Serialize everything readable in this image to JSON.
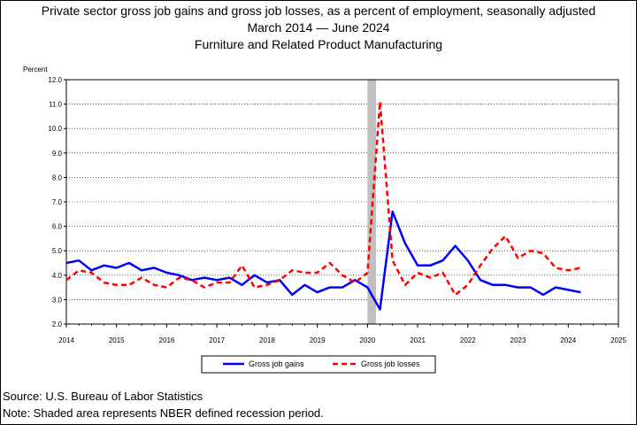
{
  "page": {
    "title_line1": "Private sector gross job gains and gross job losses, as a percent of employment, seasonally adjusted",
    "title_line2": "March 2014 — June 2024",
    "title_line3": "Furniture and Related Product Manufacturing",
    "source": "Source: U.S. Bureau of Labor Statistics",
    "note": "Note: Shaded area represents NBER defined recession period."
  },
  "chart_data": {
    "type": "line",
    "title": "Private sector gross job gains and gross job losses, as a percent of employment, seasonally adjusted",
    "ylabel": "Percent",
    "xlabel": "",
    "ylim": [
      2.0,
      12.0
    ],
    "xlim": [
      2014.0,
      2025.0
    ],
    "y_ticks": [
      "2.0",
      "3.0",
      "4.0",
      "5.0",
      "6.0",
      "7.0",
      "8.0",
      "9.0",
      "10.0",
      "11.0",
      "12.0"
    ],
    "x_ticks": [
      "2014",
      "2015",
      "2016",
      "2017",
      "2018",
      "2019",
      "2020",
      "2021",
      "2022",
      "2023",
      "2024",
      "2025"
    ],
    "grid": true,
    "legend_position": "bottom",
    "recession_band": [
      2020.0,
      2020.17
    ],
    "x": [
      2014.0,
      2014.25,
      2014.5,
      2014.75,
      2015.0,
      2015.25,
      2015.5,
      2015.75,
      2016.0,
      2016.25,
      2016.5,
      2016.75,
      2017.0,
      2017.25,
      2017.5,
      2017.75,
      2018.0,
      2018.25,
      2018.5,
      2018.75,
      2019.0,
      2019.25,
      2019.5,
      2019.75,
      2020.0,
      2020.25,
      2020.5,
      2020.75,
      2021.0,
      2021.25,
      2021.5,
      2021.75,
      2022.0,
      2022.25,
      2022.5,
      2022.75,
      2023.0,
      2023.25,
      2023.5,
      2023.75,
      2024.0,
      2024.25
    ],
    "series": [
      {
        "name": "Gross job gains",
        "color": "#0000ff",
        "dash": "solid",
        "values": [
          4.5,
          4.6,
          4.2,
          4.4,
          4.3,
          4.5,
          4.2,
          4.3,
          4.1,
          4.0,
          3.8,
          3.9,
          3.8,
          3.9,
          3.6,
          4.0,
          3.7,
          3.8,
          3.2,
          3.6,
          3.3,
          3.5,
          3.5,
          3.8,
          3.5,
          2.6,
          6.6,
          5.3,
          4.4,
          4.4,
          4.6,
          5.2,
          4.6,
          3.8,
          3.6,
          3.6,
          3.5,
          3.5,
          3.2,
          3.5,
          3.4,
          3.3
        ]
      },
      {
        "name": "Gross job losses",
        "color": "#ff0000",
        "dash": "dashed",
        "values": [
          3.8,
          4.2,
          4.1,
          3.7,
          3.6,
          3.6,
          3.9,
          3.6,
          3.5,
          3.9,
          3.8,
          3.5,
          3.7,
          3.7,
          4.4,
          3.5,
          3.6,
          3.8,
          4.2,
          4.1,
          4.1,
          4.5,
          4.0,
          3.7,
          4.1,
          11.1,
          4.6,
          3.6,
          4.1,
          3.9,
          4.1,
          3.2,
          3.6,
          4.4,
          5.1,
          5.6,
          4.7,
          5.0,
          4.9,
          4.3,
          4.2,
          4.3
        ]
      }
    ]
  }
}
